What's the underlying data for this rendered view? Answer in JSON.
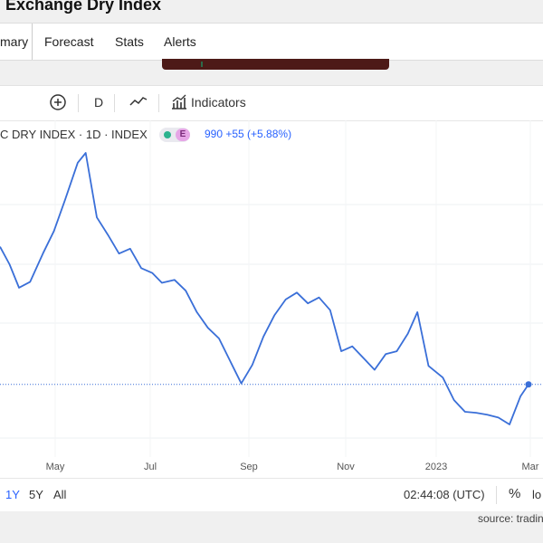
{
  "page": {
    "title": "Exchange Dry Index"
  },
  "tabs": [
    {
      "label": "mary"
    },
    {
      "label": "Forecast"
    },
    {
      "label": "Stats"
    },
    {
      "label": "Alerts"
    }
  ],
  "toolbar": {
    "interval_label": "D",
    "indicators_label": "Indicators",
    "icons": [
      "plus-circle-icon",
      "line-chart-icon",
      "indicators-icon"
    ]
  },
  "legend": {
    "symbol": "C DRY INDEX · 1D · INDEX",
    "badge_letter": "E",
    "price_text": "990  +55 (+5.88%)"
  },
  "chart_data": {
    "type": "line",
    "series_color": "#3a6fd8",
    "x_tick_labels": [
      "May",
      "Jul",
      "Sep",
      "Nov",
      "2023",
      "Mar"
    ],
    "last_value": 990,
    "change": "+55",
    "change_pct": "+5.88%",
    "current_value_guideline": "dotted",
    "points": [
      {
        "x": "2022-04-01",
        "y": 2400
      },
      {
        "x": "2022-04-07",
        "y": 2220
      },
      {
        "x": "2022-04-13",
        "y": 1980
      },
      {
        "x": "2022-04-20",
        "y": 2040
      },
      {
        "x": "2022-04-28",
        "y": 2330
      },
      {
        "x": "2022-05-05",
        "y": 2560
      },
      {
        "x": "2022-05-12",
        "y": 2880
      },
      {
        "x": "2022-05-20",
        "y": 3260
      },
      {
        "x": "2022-05-25",
        "y": 3360
      },
      {
        "x": "2022-06-01",
        "y": 2700
      },
      {
        "x": "2022-06-08",
        "y": 2520
      },
      {
        "x": "2022-06-15",
        "y": 2330
      },
      {
        "x": "2022-06-22",
        "y": 2380
      },
      {
        "x": "2022-06-29",
        "y": 2180
      },
      {
        "x": "2022-07-06",
        "y": 2130
      },
      {
        "x": "2022-07-12",
        "y": 2030
      },
      {
        "x": "2022-07-20",
        "y": 2060
      },
      {
        "x": "2022-07-27",
        "y": 1950
      },
      {
        "x": "2022-08-03",
        "y": 1730
      },
      {
        "x": "2022-08-10",
        "y": 1570
      },
      {
        "x": "2022-08-17",
        "y": 1460
      },
      {
        "x": "2022-08-24",
        "y": 1230
      },
      {
        "x": "2022-08-31",
        "y": 1000
      },
      {
        "x": "2022-09-07",
        "y": 1190
      },
      {
        "x": "2022-09-14",
        "y": 1480
      },
      {
        "x": "2022-09-21",
        "y": 1700
      },
      {
        "x": "2022-09-28",
        "y": 1860
      },
      {
        "x": "2022-10-05",
        "y": 1930
      },
      {
        "x": "2022-10-12",
        "y": 1820
      },
      {
        "x": "2022-10-19",
        "y": 1880
      },
      {
        "x": "2022-10-26",
        "y": 1750
      },
      {
        "x": "2022-11-02",
        "y": 1330
      },
      {
        "x": "2022-11-09",
        "y": 1380
      },
      {
        "x": "2022-11-16",
        "y": 1260
      },
      {
        "x": "2022-11-23",
        "y": 1140
      },
      {
        "x": "2022-11-30",
        "y": 1300
      },
      {
        "x": "2022-12-07",
        "y": 1330
      },
      {
        "x": "2022-12-14",
        "y": 1510
      },
      {
        "x": "2022-12-20",
        "y": 1730
      },
      {
        "x": "2022-12-27",
        "y": 1180
      },
      {
        "x": "2023-01-05",
        "y": 1060
      },
      {
        "x": "2023-01-12",
        "y": 830
      },
      {
        "x": "2023-01-19",
        "y": 710
      },
      {
        "x": "2023-01-26",
        "y": 700
      },
      {
        "x": "2023-02-02",
        "y": 680
      },
      {
        "x": "2023-02-09",
        "y": 650
      },
      {
        "x": "2023-02-16",
        "y": 580
      },
      {
        "x": "2023-02-23",
        "y": 870
      },
      {
        "x": "2023-02-28",
        "y": 990
      }
    ]
  },
  "bottom_bar": {
    "ranges": [
      {
        "label": "1Y",
        "active": true
      },
      {
        "label": "5Y",
        "active": false
      },
      {
        "label": "All",
        "active": false
      }
    ],
    "clock": "02:44:08 (UTC)",
    "percent_label": "%",
    "log_label": "lo"
  },
  "source": {
    "text": "source: tradin"
  }
}
